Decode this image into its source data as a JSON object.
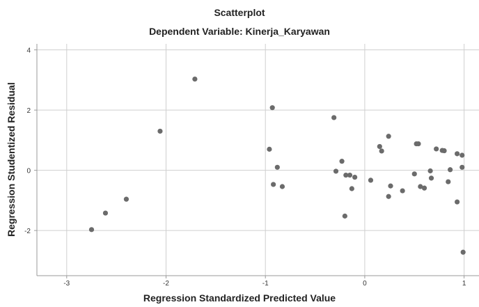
{
  "chart_data": {
    "type": "scatter",
    "title": "Scatterplot",
    "subtitle": "Dependent Variable: Kinerja_Karyawan",
    "xlabel": "Regression Standardized Predicted Value",
    "ylabel": "Regression Studentized Residual",
    "xlim": [
      -3.3,
      1.15
    ],
    "ylim": [
      -3.5,
      4.2
    ],
    "xticks": [
      -3,
      -2,
      -1,
      0,
      1
    ],
    "yticks": [
      -2,
      0,
      2,
      4
    ],
    "xtick_labels": [
      "-3",
      "-2",
      "-1",
      "0",
      "1"
    ],
    "ytick_labels": [
      "-2",
      "0",
      "2",
      "4"
    ],
    "grid": true,
    "marker_color": "#6b6b6b",
    "points": [
      {
        "x": -2.75,
        "y": -1.97
      },
      {
        "x": -2.61,
        "y": -1.42
      },
      {
        "x": -2.4,
        "y": -0.96
      },
      {
        "x": -2.06,
        "y": 1.3
      },
      {
        "x": -1.71,
        "y": 3.03
      },
      {
        "x": -0.93,
        "y": 2.08
      },
      {
        "x": -0.96,
        "y": 0.7
      },
      {
        "x": -0.88,
        "y": 0.1
      },
      {
        "x": -0.92,
        "y": -0.47
      },
      {
        "x": -0.83,
        "y": -0.54
      },
      {
        "x": -0.31,
        "y": 1.75
      },
      {
        "x": -0.29,
        "y": -0.03
      },
      {
        "x": -0.23,
        "y": 0.3
      },
      {
        "x": -0.19,
        "y": -0.16
      },
      {
        "x": -0.15,
        "y": -0.16
      },
      {
        "x": -0.1,
        "y": -0.23
      },
      {
        "x": -0.13,
        "y": -0.61
      },
      {
        "x": -0.2,
        "y": -1.52
      },
      {
        "x": 0.06,
        "y": -0.33
      },
      {
        "x": 0.15,
        "y": 0.79
      },
      {
        "x": 0.17,
        "y": 0.64
      },
      {
        "x": 0.24,
        "y": 1.13
      },
      {
        "x": 0.26,
        "y": -0.52
      },
      {
        "x": 0.24,
        "y": -0.87
      },
      {
        "x": 0.38,
        "y": -0.68
      },
      {
        "x": 0.5,
        "y": -0.12
      },
      {
        "x": 0.52,
        "y": 0.88
      },
      {
        "x": 0.54,
        "y": 0.88
      },
      {
        "x": 0.56,
        "y": -0.54
      },
      {
        "x": 0.6,
        "y": -0.59
      },
      {
        "x": 0.66,
        "y": -0.02
      },
      {
        "x": 0.67,
        "y": -0.26
      },
      {
        "x": 0.72,
        "y": 0.71
      },
      {
        "x": 0.78,
        "y": 0.66
      },
      {
        "x": 0.8,
        "y": 0.65
      },
      {
        "x": 0.84,
        "y": -0.38
      },
      {
        "x": 0.86,
        "y": 0.02
      },
      {
        "x": 0.93,
        "y": 0.55
      },
      {
        "x": 0.93,
        "y": -1.05
      },
      {
        "x": 0.98,
        "y": 0.5
      },
      {
        "x": 0.98,
        "y": 0.1
      },
      {
        "x": 0.99,
        "y": -2.72
      }
    ]
  }
}
